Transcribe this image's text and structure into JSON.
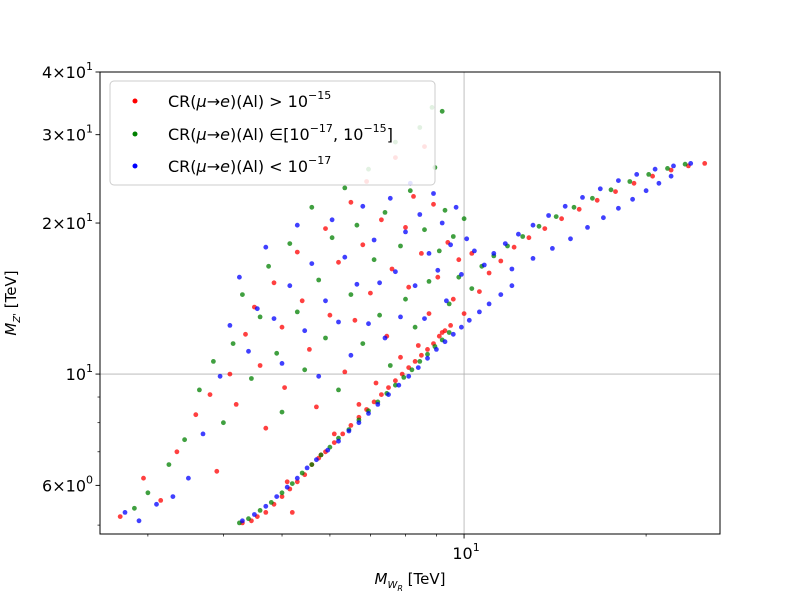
{
  "chart_data": {
    "type": "scatter",
    "xlabel": "M_{W_R} [TeV]",
    "ylabel": "M_{Z'} [TeV]",
    "xscale": "log",
    "yscale": "log",
    "xlim": [
      2.5,
      26.5
    ],
    "ylim": [
      4.8,
      40
    ],
    "grid": "major only",
    "legend_placement": "upper-left",
    "x_ticks": [
      {
        "value": 10,
        "label": "10^1"
      }
    ],
    "y_ticks": [
      {
        "value": 6,
        "label": "6×10^0"
      },
      {
        "value": 10,
        "label": "10^1"
      },
      {
        "value": 20,
        "label": "2×10^1"
      },
      {
        "value": 30,
        "label": "3×10^1"
      },
      {
        "value": 40,
        "label": "4×10^1"
      }
    ],
    "series": [
      {
        "name": "CR(μ→e)(Al) > 10^-15",
        "legend_text": "CR(μ→e)(Al) > 10^{-15}",
        "color": "#ff0000",
        "points": [
          [
            2.7,
            5.2
          ],
          [
            2.95,
            6.2
          ],
          [
            3.15,
            5.6
          ],
          [
            3.35,
            7.0
          ],
          [
            3.6,
            8.3
          ],
          [
            3.8,
            9.1
          ],
          [
            3.9,
            6.4
          ],
          [
            4.1,
            10.0
          ],
          [
            4.2,
            8.7
          ],
          [
            4.35,
            12.0
          ],
          [
            4.5,
            13.6
          ],
          [
            4.6,
            10.4
          ],
          [
            4.7,
            7.8
          ],
          [
            4.85,
            15.2
          ],
          [
            5.0,
            12.4
          ],
          [
            5.05,
            9.4
          ],
          [
            5.1,
            6.1
          ],
          [
            5.2,
            5.3
          ],
          [
            5.3,
            17.5
          ],
          [
            5.4,
            14.0
          ],
          [
            5.55,
            11.2
          ],
          [
            5.7,
            8.6
          ],
          [
            5.8,
            6.9
          ],
          [
            5.9,
            19.5
          ],
          [
            6.0,
            13.1
          ],
          [
            6.1,
            7.6
          ],
          [
            6.2,
            16.7
          ],
          [
            6.35,
            10.1
          ],
          [
            6.5,
            22.0
          ],
          [
            6.6,
            12.8
          ],
          [
            6.7,
            8.7
          ],
          [
            6.8,
            18.1
          ],
          [
            6.9,
            24.2
          ],
          [
            7.0,
            14.5
          ],
          [
            7.15,
            9.6
          ],
          [
            7.3,
            20.3
          ],
          [
            7.45,
            11.9
          ],
          [
            7.6,
            16.2
          ],
          [
            7.7,
            27.0
          ],
          [
            7.85,
            10.8
          ],
          [
            8.0,
            19.6
          ],
          [
            8.1,
            14.9
          ],
          [
            8.25,
            22.6
          ],
          [
            8.4,
            11.4
          ],
          [
            8.5,
            17.4
          ],
          [
            8.6,
            28.4
          ],
          [
            8.75,
            13.2
          ],
          [
            8.9,
            21.8
          ],
          [
            9.05,
            15.6
          ],
          [
            9.2,
            12.1
          ],
          [
            9.4,
            18.3
          ],
          [
            9.6,
            14.1
          ],
          [
            9.8,
            16.9
          ],
          [
            10.0,
            13.2
          ],
          [
            10.3,
            17.4
          ],
          [
            10.6,
            14.6
          ],
          [
            11.0,
            15.9
          ],
          [
            11.5,
            16.8
          ],
          [
            12.1,
            17.9
          ],
          [
            12.8,
            18.7
          ],
          [
            13.6,
            19.5
          ],
          [
            14.5,
            20.4
          ],
          [
            15.5,
            21.3
          ],
          [
            16.6,
            22.2
          ],
          [
            17.8,
            23.1
          ],
          [
            19.1,
            24.0
          ],
          [
            20.5,
            24.8
          ],
          [
            22.0,
            25.5
          ],
          [
            23.5,
            26.0
          ],
          [
            25.0,
            26.3
          ],
          [
            4.3,
            5.05
          ],
          [
            4.45,
            5.1
          ],
          [
            4.55,
            5.2
          ],
          [
            4.7,
            5.3
          ],
          [
            4.85,
            5.5
          ],
          [
            5.0,
            5.7
          ],
          [
            5.15,
            5.9
          ],
          [
            5.3,
            6.1
          ],
          [
            5.45,
            6.3
          ],
          [
            5.6,
            6.6
          ],
          [
            5.75,
            6.8
          ],
          [
            5.9,
            7.0
          ],
          [
            6.1,
            7.3
          ],
          [
            6.3,
            7.6
          ],
          [
            6.5,
            7.9
          ],
          [
            6.7,
            8.2
          ],
          [
            6.9,
            8.5
          ],
          [
            7.1,
            8.8
          ],
          [
            7.3,
            9.1
          ],
          [
            7.5,
            9.4
          ],
          [
            7.7,
            9.7
          ],
          [
            7.9,
            10.0
          ],
          [
            8.1,
            10.3
          ],
          [
            8.3,
            10.6
          ],
          [
            8.5,
            10.9
          ],
          [
            8.7,
            11.2
          ],
          [
            8.9,
            11.5
          ],
          [
            9.1,
            11.9
          ],
          [
            9.3,
            12.2
          ],
          [
            9.5,
            12.5
          ]
        ]
      },
      {
        "name": "CR(μ→e)(Al) ∈ [10^-17, 10^-15]",
        "legend_text": "CR(μ→e)(Al) ∈[10^{-17}, 10^{-15}]",
        "color": "#008000",
        "points": [
          [
            2.85,
            5.4
          ],
          [
            3.0,
            5.8
          ],
          [
            3.25,
            6.6
          ],
          [
            3.45,
            7.4
          ],
          [
            3.65,
            9.3
          ],
          [
            3.85,
            10.6
          ],
          [
            4.0,
            8.0
          ],
          [
            4.15,
            11.5
          ],
          [
            4.3,
            14.4
          ],
          [
            4.45,
            9.8
          ],
          [
            4.6,
            13.0
          ],
          [
            4.75,
            16.4
          ],
          [
            4.9,
            11.0
          ],
          [
            5.0,
            8.4
          ],
          [
            5.15,
            18.2
          ],
          [
            5.3,
            13.3
          ],
          [
            5.45,
            10.2
          ],
          [
            5.6,
            21.5
          ],
          [
            5.75,
            15.4
          ],
          [
            5.9,
            11.8
          ],
          [
            6.05,
            18.7
          ],
          [
            6.2,
            9.3
          ],
          [
            6.35,
            23.5
          ],
          [
            6.5,
            14.4
          ],
          [
            6.65,
            19.8
          ],
          [
            6.8,
            11.5
          ],
          [
            6.95,
            25.6
          ],
          [
            7.1,
            16.9
          ],
          [
            7.25,
            13.1
          ],
          [
            7.4,
            21.0
          ],
          [
            7.55,
            10.4
          ],
          [
            7.7,
            29.0
          ],
          [
            7.85,
            18.0
          ],
          [
            8.0,
            14.1
          ],
          [
            8.15,
            23.2
          ],
          [
            8.3,
            12.4
          ],
          [
            8.45,
            31.0
          ],
          [
            8.6,
            19.4
          ],
          [
            8.75,
            15.3
          ],
          [
            8.85,
            34.0
          ],
          [
            8.95,
            25.8
          ],
          [
            9.1,
            17.6
          ],
          [
            9.2,
            33.4
          ],
          [
            9.3,
            21.2
          ],
          [
            9.45,
            13.8
          ],
          [
            9.6,
            18.8
          ],
          [
            9.8,
            15.6
          ],
          [
            10.0,
            20.4
          ],
          [
            10.3,
            14.8
          ],
          [
            10.7,
            16.4
          ],
          [
            11.2,
            17.2
          ],
          [
            11.8,
            18.0
          ],
          [
            12.5,
            18.8
          ],
          [
            13.3,
            19.7
          ],
          [
            14.2,
            20.6
          ],
          [
            15.2,
            21.5
          ],
          [
            16.3,
            22.4
          ],
          [
            17.5,
            23.3
          ],
          [
            18.8,
            24.2
          ],
          [
            20.2,
            25.0
          ],
          [
            21.7,
            25.7
          ],
          [
            23.2,
            26.2
          ],
          [
            4.25,
            5.05
          ],
          [
            4.4,
            5.15
          ],
          [
            4.6,
            5.35
          ],
          [
            4.8,
            5.55
          ],
          [
            5.0,
            5.8
          ],
          [
            5.2,
            6.05
          ],
          [
            5.4,
            6.35
          ],
          [
            5.6,
            6.6
          ],
          [
            5.8,
            6.9
          ],
          [
            6.0,
            7.15
          ],
          [
            6.2,
            7.45
          ],
          [
            6.45,
            7.75
          ],
          [
            6.7,
            8.1
          ],
          [
            6.95,
            8.45
          ],
          [
            7.2,
            8.8
          ],
          [
            7.45,
            9.15
          ],
          [
            7.7,
            9.5
          ],
          [
            7.95,
            9.85
          ],
          [
            8.2,
            10.2
          ],
          [
            8.45,
            10.6
          ],
          [
            8.7,
            10.95
          ],
          [
            8.95,
            11.35
          ],
          [
            9.2,
            11.7
          ],
          [
            9.45,
            12.1
          ]
        ]
      },
      {
        "name": "CR(μ→e)(Al) < 10^-17",
        "legend_text": "CR(μ→e)(Al) < 10^{-17}",
        "color": "#0000ff",
        "points": [
          [
            2.75,
            5.3
          ],
          [
            2.9,
            5.1
          ],
          [
            3.1,
            5.5
          ],
          [
            3.3,
            5.7
          ],
          [
            3.5,
            6.2
          ],
          [
            3.7,
            7.6
          ],
          [
            3.95,
            9.9
          ],
          [
            4.1,
            12.5
          ],
          [
            4.25,
            15.6
          ],
          [
            4.4,
            11.1
          ],
          [
            4.55,
            13.5
          ],
          [
            4.7,
            17.9
          ],
          [
            4.85,
            12.9
          ],
          [
            5.0,
            10.5
          ],
          [
            5.15,
            15.0
          ],
          [
            5.3,
            19.8
          ],
          [
            5.45,
            12.2
          ],
          [
            5.6,
            16.6
          ],
          [
            5.75,
            9.9
          ],
          [
            5.9,
            14.0
          ],
          [
            6.05,
            20.3
          ],
          [
            6.2,
            12.7
          ],
          [
            6.35,
            17.1
          ],
          [
            6.5,
            10.9
          ],
          [
            6.65,
            15.1
          ],
          [
            6.8,
            21.6
          ],
          [
            6.95,
            12.6
          ],
          [
            7.1,
            18.5
          ],
          [
            7.25,
            15.2
          ],
          [
            7.4,
            11.8
          ],
          [
            7.55,
            22.4
          ],
          [
            7.7,
            16.0
          ],
          [
            7.85,
            13.0
          ],
          [
            8.0,
            19.2
          ],
          [
            8.15,
            24.0
          ],
          [
            8.3,
            15.0
          ],
          [
            8.45,
            20.8
          ],
          [
            8.6,
            12.9
          ],
          [
            8.75,
            17.4
          ],
          [
            8.9,
            22.9
          ],
          [
            9.05,
            16.1
          ],
          [
            9.2,
            20.0
          ],
          [
            9.35,
            14.0
          ],
          [
            9.5,
            18.1
          ],
          [
            9.7,
            21.5
          ],
          [
            9.9,
            15.8
          ],
          [
            10.1,
            18.6
          ],
          [
            10.4,
            17.6
          ],
          [
            10.8,
            16.5
          ],
          [
            11.2,
            17.4
          ],
          [
            11.7,
            18.2
          ],
          [
            12.3,
            19.0
          ],
          [
            13.0,
            19.8
          ],
          [
            13.8,
            20.7
          ],
          [
            14.7,
            21.6
          ],
          [
            15.7,
            22.5
          ],
          [
            16.8,
            23.4
          ],
          [
            18.0,
            24.3
          ],
          [
            19.3,
            25.0
          ],
          [
            20.7,
            25.6
          ],
          [
            22.2,
            26.0
          ],
          [
            23.7,
            26.3
          ],
          [
            12.0,
            16.2
          ],
          [
            13.0,
            17.0
          ],
          [
            14.0,
            17.8
          ],
          [
            15.0,
            18.6
          ],
          [
            16.0,
            19.6
          ],
          [
            17.0,
            20.5
          ],
          [
            18.0,
            21.4
          ],
          [
            19.0,
            22.3
          ],
          [
            20.0,
            23.2
          ],
          [
            21.0,
            24.0
          ],
          [
            22.0,
            24.8
          ],
          [
            4.3,
            5.1
          ],
          [
            4.5,
            5.25
          ],
          [
            4.7,
            5.45
          ],
          [
            4.9,
            5.7
          ],
          [
            5.1,
            5.95
          ],
          [
            5.3,
            6.2
          ],
          [
            5.5,
            6.5
          ],
          [
            5.7,
            6.75
          ],
          [
            5.95,
            7.05
          ],
          [
            6.2,
            7.35
          ],
          [
            6.45,
            7.7
          ],
          [
            6.7,
            8.0
          ],
          [
            6.95,
            8.35
          ],
          [
            7.2,
            8.7
          ],
          [
            7.5,
            9.1
          ],
          [
            7.8,
            9.5
          ],
          [
            8.1,
            9.9
          ],
          [
            8.4,
            10.3
          ],
          [
            8.7,
            10.75
          ],
          [
            9.0,
            11.2
          ],
          [
            9.3,
            11.6
          ],
          [
            9.6,
            12.0
          ],
          [
            9.9,
            12.4
          ],
          [
            10.2,
            12.8
          ],
          [
            10.6,
            13.3
          ],
          [
            11.0,
            13.8
          ],
          [
            11.5,
            14.4
          ],
          [
            12.0,
            15.0
          ]
        ]
      }
    ]
  }
}
